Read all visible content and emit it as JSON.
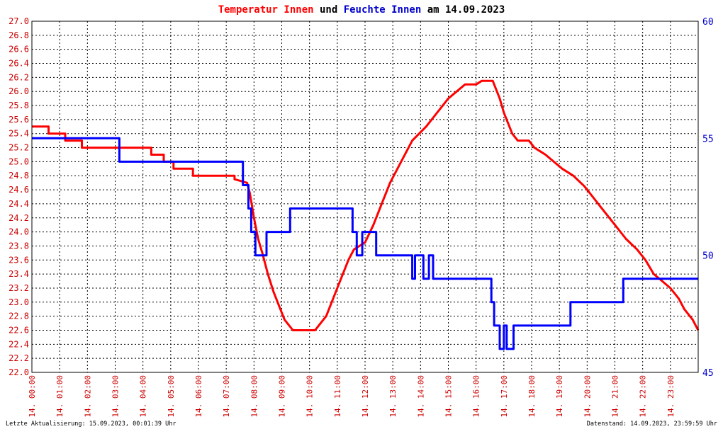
{
  "title": {
    "part1": "Temperatur Innen",
    "part2": " und ",
    "part3": "Feuchte Innen",
    "part4": " am 14.09.2023"
  },
  "footer": {
    "left": "Letzte Aktualisierung: 15.09.2023, 00:01:39 Uhr",
    "right": "Datenstand: 14.09.2023, 23:59:59 Uhr"
  },
  "colors": {
    "temperature": "#ff0000",
    "humidity": "#0000ff",
    "grid": "#000000",
    "left_axis_text": "#cc0000",
    "right_axis_text": "#0000cc"
  },
  "chart_data": {
    "type": "line",
    "grid": true,
    "y_left": {
      "range": [
        22.0,
        27.0
      ],
      "ticks": [
        "22.0",
        "22.2",
        "22.4",
        "22.6",
        "22.8",
        "23.0",
        "23.2",
        "23.4",
        "23.6",
        "23.8",
        "24.0",
        "24.2",
        "24.4",
        "24.6",
        "24.8",
        "25.0",
        "25.2",
        "25.4",
        "25.6",
        "25.8",
        "26.0",
        "26.2",
        "26.4",
        "26.6",
        "26.8",
        "27.0"
      ]
    },
    "y_right": {
      "range": [
        45,
        60
      ],
      "ticks": [
        "45",
        "50",
        "55",
        "60"
      ]
    },
    "x_range_hours": [
      0,
      24
    ],
    "x_ticks": [
      "14. 00:00",
      "14. 01:00",
      "14. 02:00",
      "14. 03:00",
      "14. 04:00",
      "14. 05:00",
      "14. 06:00",
      "14. 07:00",
      "14. 08:00",
      "14. 09:00",
      "14. 10:00",
      "14. 11:00",
      "14. 12:00",
      "14. 13:00",
      "14. 14:00",
      "14. 15:00",
      "14. 16:00",
      "14. 17:00",
      "14. 18:00",
      "14. 19:00",
      "14. 20:00",
      "14. 21:00",
      "14. 22:00",
      "14. 23:00"
    ],
    "series": [
      {
        "name": "Temperatur Innen",
        "axis": "left",
        "color": "#ff0000",
        "points": [
          [
            0.0,
            25.5
          ],
          [
            0.6,
            25.5
          ],
          [
            0.6,
            25.4
          ],
          [
            1.2,
            25.4
          ],
          [
            1.2,
            25.3
          ],
          [
            1.8,
            25.3
          ],
          [
            1.8,
            25.2
          ],
          [
            4.3,
            25.2
          ],
          [
            4.3,
            25.1
          ],
          [
            4.75,
            25.1
          ],
          [
            4.75,
            25.0
          ],
          [
            5.1,
            25.0
          ],
          [
            5.1,
            24.9
          ],
          [
            5.8,
            24.9
          ],
          [
            5.8,
            24.8
          ],
          [
            7.3,
            24.8
          ],
          [
            7.3,
            24.75
          ],
          [
            7.75,
            24.7
          ],
          [
            7.85,
            24.55
          ],
          [
            8.0,
            24.2
          ],
          [
            8.15,
            23.9
          ],
          [
            8.3,
            23.7
          ],
          [
            8.5,
            23.4
          ],
          [
            8.7,
            23.15
          ],
          [
            8.9,
            22.95
          ],
          [
            9.1,
            22.75
          ],
          [
            9.3,
            22.65
          ],
          [
            9.4,
            22.6
          ],
          [
            10.2,
            22.6
          ],
          [
            10.4,
            22.7
          ],
          [
            10.6,
            22.8
          ],
          [
            10.8,
            23.0
          ],
          [
            11.0,
            23.2
          ],
          [
            11.2,
            23.4
          ],
          [
            11.4,
            23.6
          ],
          [
            11.6,
            23.75
          ],
          [
            12.0,
            23.85
          ],
          [
            12.3,
            24.1
          ],
          [
            12.6,
            24.4
          ],
          [
            12.9,
            24.7
          ],
          [
            13.3,
            25.0
          ],
          [
            13.7,
            25.3
          ],
          [
            14.2,
            25.5
          ],
          [
            14.6,
            25.7
          ],
          [
            15.0,
            25.9
          ],
          [
            15.3,
            26.0
          ],
          [
            15.6,
            26.1
          ],
          [
            16.0,
            26.1
          ],
          [
            16.2,
            26.15
          ],
          [
            16.6,
            26.15
          ],
          [
            16.7,
            26.05
          ],
          [
            16.85,
            25.9
          ],
          [
            17.0,
            25.7
          ],
          [
            17.3,
            25.4
          ],
          [
            17.5,
            25.3
          ],
          [
            17.9,
            25.3
          ],
          [
            18.1,
            25.2
          ],
          [
            18.5,
            25.1
          ],
          [
            18.8,
            25.0
          ],
          [
            19.1,
            24.9
          ],
          [
            19.5,
            24.8
          ],
          [
            19.9,
            24.65
          ],
          [
            20.2,
            24.5
          ],
          [
            20.5,
            24.35
          ],
          [
            20.8,
            24.2
          ],
          [
            21.1,
            24.05
          ],
          [
            21.4,
            23.9
          ],
          [
            21.8,
            23.75
          ],
          [
            22.1,
            23.6
          ],
          [
            22.4,
            23.4
          ],
          [
            22.7,
            23.3
          ],
          [
            23.0,
            23.2
          ],
          [
            23.3,
            23.05
          ],
          [
            23.5,
            22.9
          ],
          [
            23.8,
            22.75
          ],
          [
            24.0,
            22.6
          ]
        ]
      },
      {
        "name": "Feuchte Innen",
        "axis": "right",
        "color": "#0000ff",
        "points": [
          [
            0.0,
            55.0
          ],
          [
            3.15,
            55.0
          ],
          [
            3.15,
            54.0
          ],
          [
            7.6,
            54.0
          ],
          [
            7.6,
            53.0
          ],
          [
            7.8,
            53.0
          ],
          [
            7.8,
            52.0
          ],
          [
            7.9,
            52.0
          ],
          [
            7.9,
            51.0
          ],
          [
            8.05,
            51.0
          ],
          [
            8.05,
            50.0
          ],
          [
            8.45,
            50.0
          ],
          [
            8.45,
            51.0
          ],
          [
            9.3,
            51.0
          ],
          [
            9.3,
            52.0
          ],
          [
            11.55,
            52.0
          ],
          [
            11.55,
            51.0
          ],
          [
            11.7,
            51.0
          ],
          [
            11.7,
            50.0
          ],
          [
            11.9,
            50.0
          ],
          [
            11.9,
            51.0
          ],
          [
            12.4,
            51.0
          ],
          [
            12.4,
            50.0
          ],
          [
            13.7,
            50.0
          ],
          [
            13.7,
            49.0
          ],
          [
            13.8,
            49.0
          ],
          [
            13.8,
            50.0
          ],
          [
            14.1,
            50.0
          ],
          [
            14.1,
            49.0
          ],
          [
            14.3,
            49.0
          ],
          [
            14.3,
            50.0
          ],
          [
            14.45,
            50.0
          ],
          [
            14.45,
            49.0
          ],
          [
            16.55,
            49.0
          ],
          [
            16.55,
            48.0
          ],
          [
            16.65,
            48.0
          ],
          [
            16.65,
            47.0
          ],
          [
            16.85,
            47.0
          ],
          [
            16.85,
            46.0
          ],
          [
            17.0,
            46.0
          ],
          [
            17.0,
            47.0
          ],
          [
            17.1,
            47.0
          ],
          [
            17.1,
            46.0
          ],
          [
            17.35,
            46.0
          ],
          [
            17.35,
            47.0
          ],
          [
            19.4,
            47.0
          ],
          [
            19.4,
            48.0
          ],
          [
            21.3,
            48.0
          ],
          [
            21.3,
            49.0
          ],
          [
            24.0,
            49.0
          ]
        ]
      }
    ]
  }
}
